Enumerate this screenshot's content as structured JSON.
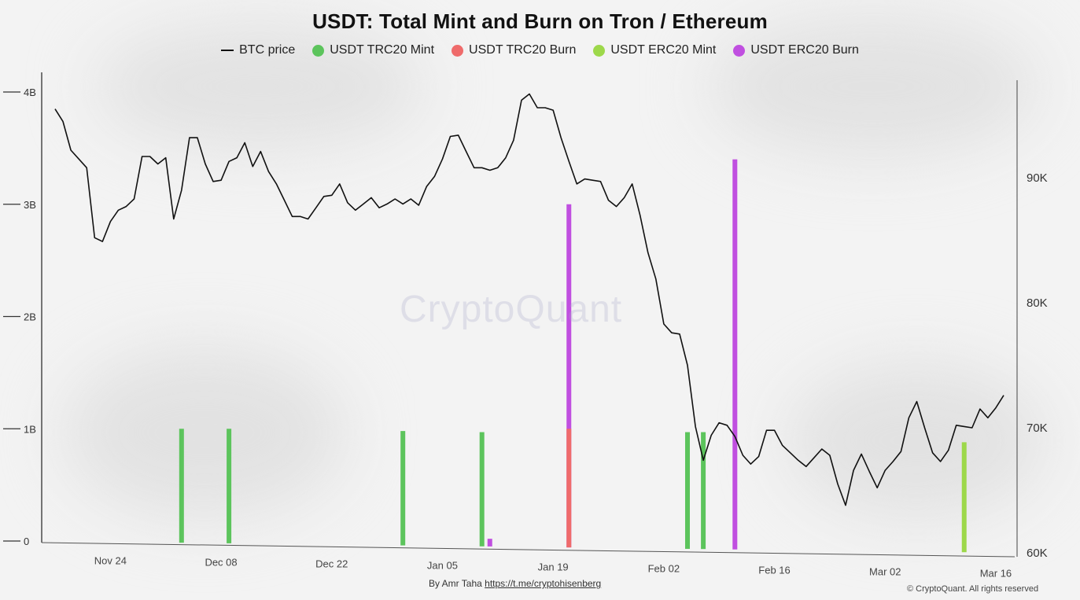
{
  "colors": {
    "btc_line": "#111111",
    "trc20_mint": "#5cc45c",
    "trc20_burn": "#ef6b6b",
    "erc20_mint": "#9dd84a",
    "erc20_burn": "#c04fe0"
  },
  "byline": {
    "prefix": "By Amr Taha",
    "link": "https://t.me/cryptohisenberg"
  },
  "copyright": "© CryptoQuant. All rights reserved",
  "watermark": "CryptoQuant",
  "chart_data": {
    "type": "bar",
    "title": "USDT: Total Mint and Burn on Tron / Ethereum",
    "legend": [
      "BTC price",
      "USDT TRC20 Mint",
      "USDT TRC20 Burn",
      "USDT ERC20 Mint",
      "USDT ERC20 Burn"
    ],
    "legend_position": "top",
    "x_ticks": [
      "Nov 24",
      "Dec 08",
      "Dec 22",
      "Jan 05",
      "Jan 19",
      "Feb 02",
      "Feb 16",
      "Mar 02",
      "Mar 16"
    ],
    "x_start": "Nov 17",
    "y_left": {
      "ticks": [
        "0",
        "1B",
        "2B",
        "3B",
        "4B"
      ],
      "range": [
        0,
        4
      ]
    },
    "y_right": {
      "ticks": [
        "60K",
        "70K",
        "80K",
        "90K"
      ],
      "range": [
        60,
        100
      ]
    },
    "series": [
      {
        "name": "USDT TRC20 Mint",
        "points": [
          [
            16,
            1.0
          ],
          [
            22,
            1.0
          ],
          [
            44,
            0.98
          ],
          [
            54,
            0.97
          ],
          [
            80,
            0.97
          ],
          [
            82,
            0.97
          ]
        ]
      },
      {
        "name": "USDT ERC20 Mint",
        "points": [
          [
            115,
            0.88
          ]
        ]
      },
      {
        "name": "USDT ERC20 Burn",
        "points": [
          [
            55,
            0.02
          ],
          [
            65,
            3.0
          ],
          [
            86,
            3.4
          ]
        ]
      },
      {
        "name": "USDT TRC20 Burn",
        "points": [
          [
            65,
            1.0
          ]
        ]
      },
      {
        "name": "BTC price",
        "points": [
          [
            0,
            95.5
          ],
          [
            1,
            94.5
          ],
          [
            2,
            92.2
          ],
          [
            3,
            91.5
          ],
          [
            4,
            90.8
          ],
          [
            5,
            85.2
          ],
          [
            6,
            84.9
          ],
          [
            7,
            86.5
          ],
          [
            8,
            87.4
          ],
          [
            9,
            87.7
          ],
          [
            10,
            88.3
          ],
          [
            11,
            91.7
          ],
          [
            12,
            91.7
          ],
          [
            13,
            91.1
          ],
          [
            14,
            91.6
          ],
          [
            15,
            86.7
          ],
          [
            16,
            89.0
          ],
          [
            17,
            93.2
          ],
          [
            18,
            93.2
          ],
          [
            19,
            91.1
          ],
          [
            20,
            89.7
          ],
          [
            21,
            89.8
          ],
          [
            22,
            91.3
          ],
          [
            23,
            91.6
          ],
          [
            24,
            92.8
          ],
          [
            25,
            90.9
          ],
          [
            26,
            92.1
          ],
          [
            27,
            90.5
          ],
          [
            28,
            89.5
          ],
          [
            29,
            88.2
          ],
          [
            30,
            86.9
          ],
          [
            31,
            86.9
          ],
          [
            32,
            86.7
          ],
          [
            33,
            87.6
          ],
          [
            34,
            88.5
          ],
          [
            35,
            88.6
          ],
          [
            36,
            89.5
          ],
          [
            37,
            88.0
          ],
          [
            38,
            87.4
          ],
          [
            39,
            87.9
          ],
          [
            40,
            88.4
          ],
          [
            41,
            87.6
          ],
          [
            42,
            87.9
          ],
          [
            43,
            88.3
          ],
          [
            44,
            87.9
          ],
          [
            45,
            88.3
          ],
          [
            46,
            87.8
          ],
          [
            47,
            89.3
          ],
          [
            48,
            90.1
          ],
          [
            49,
            91.5
          ],
          [
            50,
            93.3
          ],
          [
            51,
            93.4
          ],
          [
            52,
            92.1
          ],
          [
            53,
            90.8
          ],
          [
            54,
            90.8
          ],
          [
            55,
            90.6
          ],
          [
            56,
            90.8
          ],
          [
            57,
            91.6
          ],
          [
            58,
            93.0
          ],
          [
            59,
            96.2
          ],
          [
            60,
            96.7
          ],
          [
            61,
            95.6
          ],
          [
            62,
            95.6
          ],
          [
            63,
            95.4
          ],
          [
            64,
            93.2
          ],
          [
            65,
            91.3
          ],
          [
            66,
            89.5
          ],
          [
            67,
            89.9
          ],
          [
            68,
            89.8
          ],
          [
            69,
            89.7
          ],
          [
            70,
            88.2
          ],
          [
            71,
            87.7
          ],
          [
            72,
            88.4
          ],
          [
            73,
            89.5
          ],
          [
            74,
            87.0
          ],
          [
            75,
            84.0
          ],
          [
            76,
            81.9
          ],
          [
            77,
            78.3
          ],
          [
            78,
            77.6
          ],
          [
            79,
            77.5
          ],
          [
            80,
            75.0
          ],
          [
            81,
            70.1
          ],
          [
            82,
            67.4
          ],
          [
            83,
            69.4
          ],
          [
            84,
            70.4
          ],
          [
            85,
            70.2
          ],
          [
            86,
            69.3
          ],
          [
            87,
            67.8
          ],
          [
            88,
            67.1
          ],
          [
            89,
            67.7
          ],
          [
            90,
            69.8
          ],
          [
            91,
            69.8
          ],
          [
            92,
            68.6
          ],
          [
            93,
            68.0
          ],
          [
            94,
            67.4
          ],
          [
            95,
            66.9
          ],
          [
            96,
            67.6
          ],
          [
            97,
            68.3
          ],
          [
            98,
            67.8
          ],
          [
            99,
            65.5
          ],
          [
            100,
            63.8
          ],
          [
            101,
            66.6
          ],
          [
            102,
            67.9
          ],
          [
            103,
            66.5
          ],
          [
            104,
            65.2
          ],
          [
            105,
            66.6
          ],
          [
            106,
            67.3
          ],
          [
            107,
            68.1
          ],
          [
            108,
            70.8
          ],
          [
            109,
            72.1
          ],
          [
            110,
            70.0
          ],
          [
            111,
            68.0
          ],
          [
            112,
            67.3
          ],
          [
            113,
            68.2
          ],
          [
            114,
            70.2
          ],
          [
            115,
            70.1
          ],
          [
            116,
            70.0
          ],
          [
            117,
            71.5
          ],
          [
            118,
            70.8
          ],
          [
            119,
            71.6
          ],
          [
            120,
            72.6
          ]
        ]
      }
    ],
    "grid": false
  }
}
